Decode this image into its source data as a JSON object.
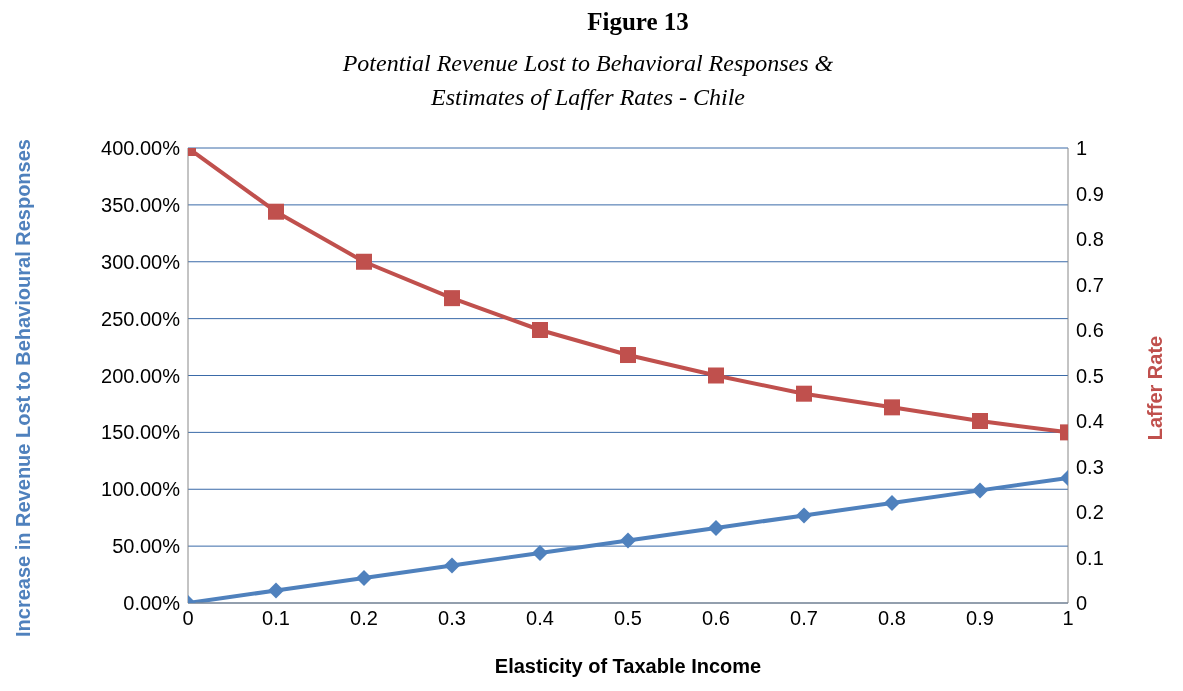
{
  "chart_data": {
    "type": "line",
    "title": "Figure 13",
    "subtitle": "Potential Revenue Lost to Behavioral Responses & Estimates of Laffer Rates - Chile",
    "xlabel": "Elasticity of Taxable Income",
    "ylabel": "Increase in Revenue  Lost to Behavioural Responses",
    "y2label": "Laffer Rate",
    "x": [
      0,
      0.1,
      0.2,
      0.3,
      0.4,
      0.5,
      0.6,
      0.7,
      0.8,
      0.9,
      1
    ],
    "series": [
      {
        "color": "#4f81bd",
        "marker": "diamond",
        "axis": "y",
        "values": [
          0,
          11,
          22,
          33,
          44,
          55,
          66,
          77,
          88,
          99,
          110
        ]
      },
      {
        "color": "#c0504d",
        "marker": "square",
        "axis": "y2",
        "values": [
          1,
          0.86,
          0.75,
          0.67,
          0.6,
          0.545,
          0.5,
          0.46,
          0.43,
          0.4,
          0.375
        ]
      }
    ],
    "xlim": [
      0,
      1
    ],
    "xticks": [
      0,
      0.1,
      0.2,
      0.3,
      0.4,
      0.5,
      0.6,
      0.7,
      0.8,
      0.9,
      1
    ],
    "ylim": [
      0,
      400
    ],
    "yticks": [
      {
        "value": 0,
        "label": "0.00%"
      },
      {
        "value": 50,
        "label": "50.00%"
      },
      {
        "value": 100,
        "label": "100.00%"
      },
      {
        "value": 150,
        "label": "150.00%"
      },
      {
        "value": 200,
        "label": "200.00%"
      },
      {
        "value": 250,
        "label": "250.00%"
      },
      {
        "value": 300,
        "label": "300.00%"
      },
      {
        "value": 350,
        "label": "350.00%"
      },
      {
        "value": 400,
        "label": "400.00%"
      }
    ],
    "y2lim": [
      0,
      1
    ],
    "y2ticks": [
      0,
      0.1,
      0.2,
      0.3,
      0.4,
      0.5,
      0.6,
      0.7,
      0.8,
      0.9,
      1
    ],
    "grid": "y",
    "legend": false
  }
}
